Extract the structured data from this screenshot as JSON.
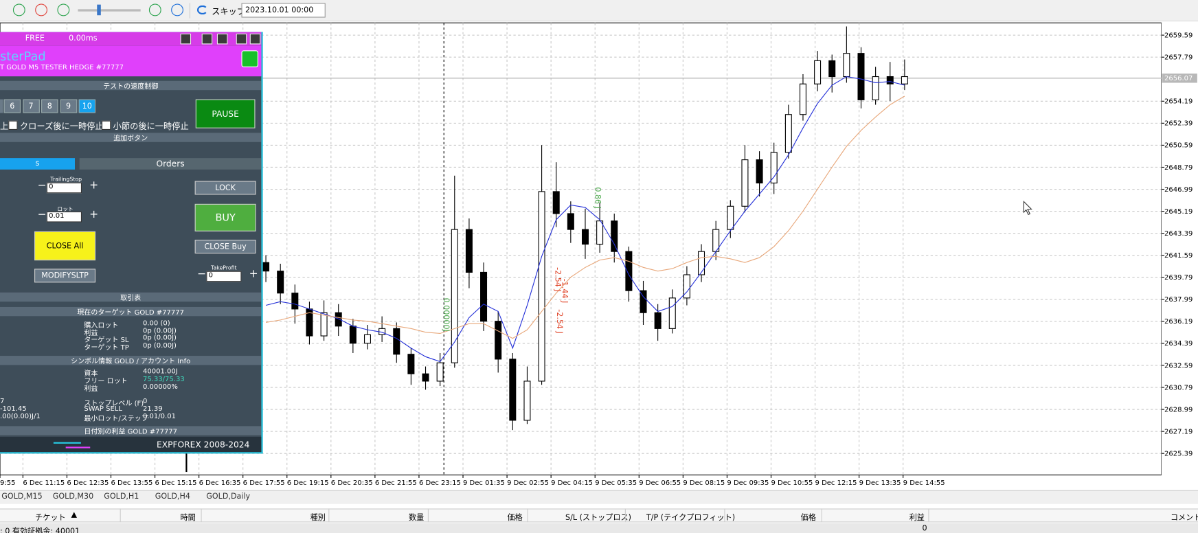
{
  "toolbar": {
    "skip": "スキップ",
    "date": "2023.10.01 00:00"
  },
  "panel": {
    "free": "FREE",
    "ms": "0.00ms",
    "title": "sterPad",
    "subtitle": "T GOLD M5 TESTER HEDGE  #77777",
    "speed_section": "テストの速度制御",
    "speed_buttons": [
      "6",
      "7",
      "8",
      "9",
      "10"
    ],
    "pause": "PAUSE",
    "check_left": "上",
    "check_close": "クローズ後に一時停止",
    "check_bar": "小節の後に一時停止",
    "extra_section": "追加ボタン",
    "tab_left": "s",
    "tab_orders": "Orders",
    "trailing_label": "TrailingStop",
    "trailing_value": "0",
    "lot_label": "ロット",
    "lot_value": "0.01",
    "lock": "LOCK",
    "buy": "BUY",
    "close_all": "CLOSE All",
    "close_buy": "CLOSE Buy",
    "tp_label": "TakeProfit",
    "tp_value": "0",
    "modify": "MODIFYSLTP",
    "trade_section": "取引表",
    "target_section": "現在のターゲット GOLD  #77777",
    "target_rows": [
      [
        "購入ロット",
        "0.00 (0)"
      ],
      [
        "利益",
        "0p (0.00J)"
      ],
      [
        "ターゲット SL",
        "0p (0.00J)"
      ],
      [
        "ターゲット TP",
        "0p (0.00J)"
      ]
    ],
    "symbol_section": "シンボル情報 GOLD / アカウント Info",
    "account_rows": [
      [
        "資本",
        "40001.00J"
      ],
      [
        "フリー ロット",
        "75.33/75.33"
      ],
      [
        "利益",
        "0.00000%"
      ]
    ],
    "left_rows": [
      "7",
      "-101.45",
      ".00(0.00)J/1"
    ],
    "info_rows": [
      [
        "ストップレベル (F)",
        "0"
      ],
      [
        "SWAP SELL",
        "21.39"
      ],
      [
        "最小ロット/ステップ",
        "0.01/0.01"
      ]
    ],
    "daily_section": "日付別の利益 GOLD  #77777",
    "footer": "EXPFOREX 2008-2024"
  },
  "chart": {
    "type": "candlestick",
    "ylim": [
      2623.63,
      2660.59
    ],
    "yticks": [
      2625.39,
      2627.19,
      2628.99,
      2630.79,
      2632.59,
      2634.39,
      2636.19,
      2637.99,
      2639.79,
      2641.59,
      2643.39,
      2645.19,
      2646.99,
      2648.79,
      2650.59,
      2652.39,
      2654.19,
      2657.79,
      2659.59
    ],
    "grid": true,
    "current_price": 2656.07,
    "time_labels": [
      "9:55",
      "6 Dec 11:15",
      "6 Dec 12:35",
      "6 Dec 13:55",
      "6 Dec 15:15",
      "6 Dec 16:35",
      "6 Dec 17:55",
      "6 Dec 19:15",
      "6 Dec 20:35",
      "6 Dec 21:55",
      "6 Dec 23:15",
      "9 Dec 01:35",
      "9 Dec 02:55",
      "9 Dec 04:15",
      "9 Dec 05:35",
      "9 Dec 06:55",
      "9 Dec 08:15",
      "9 Dec 09:35",
      "9 Dec 10:55",
      "9 Dec 12:15",
      "9 Dec 13:35",
      "9 Dec 14:55"
    ],
    "candles": [
      [
        2641.0,
        2641.6,
        2639.4,
        2640.3
      ],
      [
        2640.3,
        2640.9,
        2637.6,
        2638.5
      ],
      [
        2638.5,
        2639.2,
        2636.0,
        2637.2
      ],
      [
        2637.2,
        2637.8,
        2634.3,
        2635.0
      ],
      [
        2635.0,
        2637.9,
        2634.6,
        2636.9
      ],
      [
        2636.9,
        2637.6,
        2635.0,
        2635.8
      ],
      [
        2635.8,
        2636.4,
        2633.6,
        2634.4
      ],
      [
        2634.4,
        2635.9,
        2633.9,
        2635.1
      ],
      [
        2635.1,
        2636.6,
        2634.5,
        2635.6
      ],
      [
        2635.6,
        2636.1,
        2632.8,
        2633.5
      ],
      [
        2633.5,
        2634.0,
        2631.0,
        2631.9
      ],
      [
        2631.9,
        2632.5,
        2630.6,
        2631.3
      ],
      [
        2631.3,
        2633.6,
        2630.9,
        2632.8
      ],
      [
        2632.8,
        2648.1,
        2632.4,
        2643.7
      ],
      [
        2643.7,
        2644.6,
        2638.9,
        2640.2
      ],
      [
        2640.2,
        2641.0,
        2635.4,
        2636.2
      ],
      [
        2636.2,
        2637.0,
        2632.0,
        2633.1
      ],
      [
        2633.1,
        2633.6,
        2627.3,
        2628.1
      ],
      [
        2628.1,
        2632.5,
        2627.8,
        2631.3
      ],
      [
        2631.3,
        2650.6,
        2631.0,
        2646.8
      ],
      [
        2646.8,
        2649.2,
        2643.9,
        2645.0
      ],
      [
        2645.0,
        2646.0,
        2642.6,
        2643.7
      ],
      [
        2643.7,
        2645.4,
        2641.3,
        2642.5
      ],
      [
        2642.5,
        2645.9,
        2641.8,
        2644.4
      ],
      [
        2644.4,
        2645.0,
        2641.0,
        2641.9
      ],
      [
        2641.9,
        2642.3,
        2637.8,
        2638.7
      ],
      [
        2638.7,
        2639.5,
        2635.9,
        2636.9
      ],
      [
        2636.9,
        2637.6,
        2634.6,
        2635.6
      ],
      [
        2635.6,
        2638.8,
        2635.2,
        2638.1
      ],
      [
        2638.1,
        2640.7,
        2637.5,
        2640.0
      ],
      [
        2640.0,
        2642.5,
        2639.4,
        2641.9
      ],
      [
        2641.9,
        2644.4,
        2641.2,
        2643.7
      ],
      [
        2643.7,
        2646.1,
        2643.0,
        2645.6
      ],
      [
        2645.6,
        2650.6,
        2645.1,
        2649.4
      ],
      [
        2649.4,
        2650.1,
        2646.4,
        2647.5
      ],
      [
        2647.5,
        2650.8,
        2646.6,
        2650.0
      ],
      [
        2650.0,
        2653.9,
        2649.5,
        2653.1
      ],
      [
        2653.1,
        2656.4,
        2652.6,
        2655.6
      ],
      [
        2655.6,
        2658.3,
        2655.0,
        2657.5
      ],
      [
        2657.5,
        2658.0,
        2654.9,
        2656.2
      ],
      [
        2656.2,
        2660.3,
        2655.7,
        2658.1
      ],
      [
        2658.1,
        2658.6,
        2653.6,
        2654.3
      ],
      [
        2654.3,
        2657.0,
        2653.9,
        2656.2
      ],
      [
        2656.2,
        2657.4,
        2654.2,
        2655.6
      ],
      [
        2655.6,
        2657.6,
        2655.1,
        2656.2
      ]
    ],
    "ma_fast": {
      "color": "#2430d8",
      "values": [
        2637.5,
        2637.8,
        2637.6,
        2637.2,
        2636.8,
        2636.4,
        2635.8,
        2635.5,
        2635.3,
        2634.8,
        2634.0,
        2633.3,
        2632.9,
        2634.5,
        2636.5,
        2637.6,
        2637.0,
        2634.0,
        2637.5,
        2641.5,
        2644.5,
        2645.7,
        2645.5,
        2644.5,
        2642.5,
        2640.0,
        2638.2,
        2637.0,
        2637.4,
        2638.6,
        2640.2,
        2641.9,
        2643.6,
        2645.2,
        2646.6,
        2648.0,
        2649.8,
        2652.0,
        2654.0,
        2655.5,
        2656.2,
        2656.0,
        2655.7,
        2655.8,
        2655.5
      ]
    },
    "ma_slow": {
      "color": "#e8a77a",
      "values": [
        2636.1,
        2636.3,
        2636.6,
        2636.9,
        2636.7,
        2636.5,
        2636.3,
        2636.2,
        2636.0,
        2635.8,
        2635.6,
        2635.3,
        2635.2,
        2635.6,
        2636.0,
        2636.0,
        2635.4,
        2634.8,
        2635.5,
        2637.0,
        2638.5,
        2639.8,
        2640.6,
        2641.2,
        2641.4,
        2641.1,
        2640.6,
        2640.3,
        2640.5,
        2641.0,
        2641.4,
        2641.5,
        2641.3,
        2641.0,
        2641.4,
        2642.3,
        2643.6,
        2645.2,
        2647.0,
        2648.8,
        2650.5,
        2651.8,
        2652.9,
        2653.9,
        2654.6
      ]
    },
    "annotations": [
      "-2.54 J",
      "-1.44 J",
      "-2.54 J",
      "0.86 J",
      "0.00000J"
    ]
  },
  "bottom": {
    "tabs": [
      "GOLD,M15",
      "GOLD,M30",
      "GOLD,H1",
      "GOLD,H4",
      "GOLD,Daily"
    ],
    "columns": [
      "チケット",
      "▲",
      "時間",
      "種別",
      "数量",
      "価格",
      "S/L (ストップロス)",
      "T/P (テイクプロフィット)",
      "価格",
      "利益",
      "コメント"
    ],
    "row": [
      ": 0  有効証拠金: 40001",
      "0"
    ]
  }
}
